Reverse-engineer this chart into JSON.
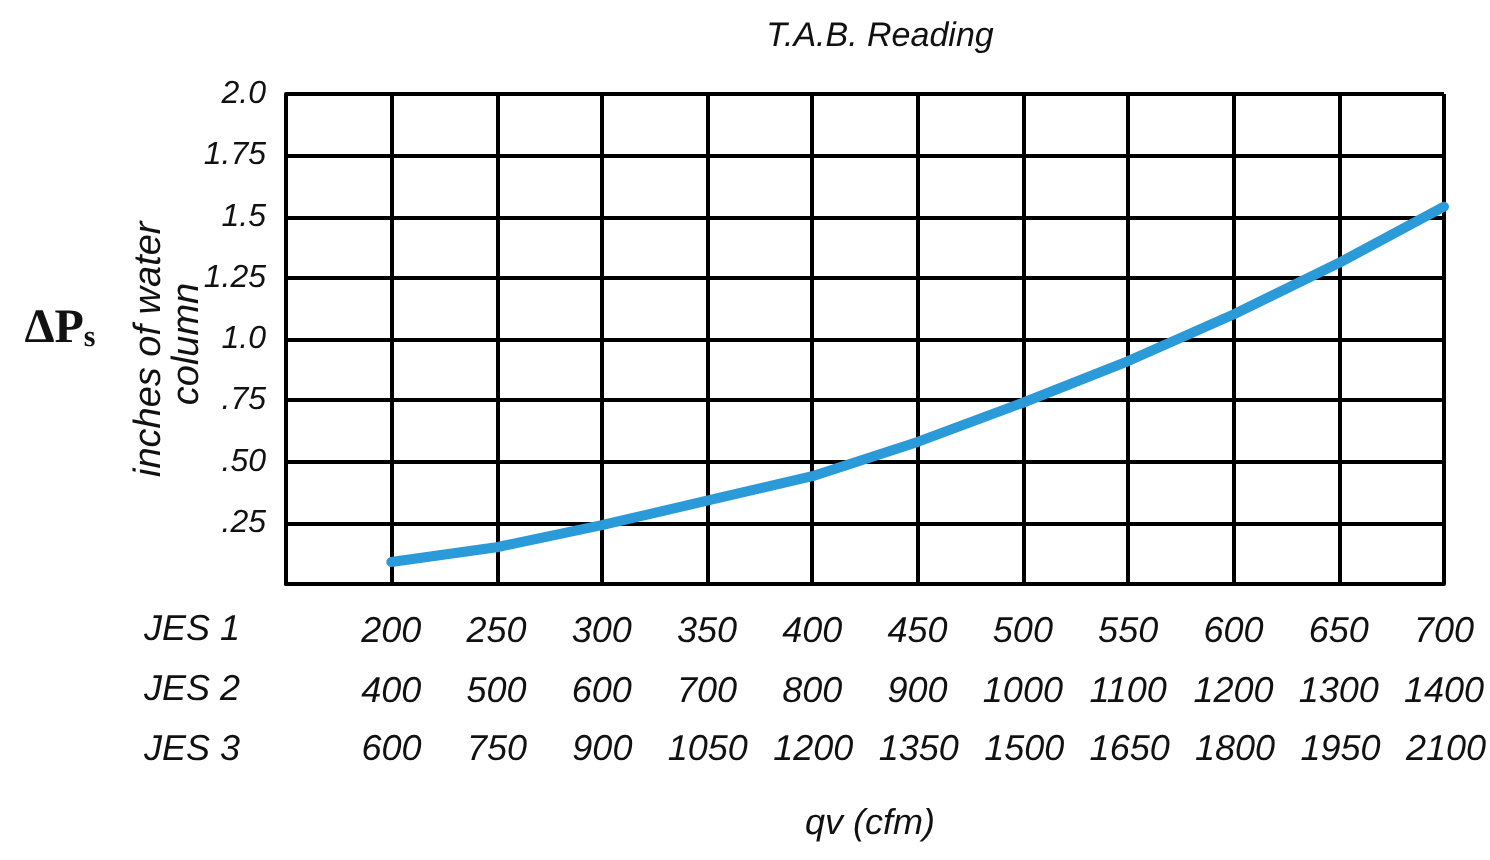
{
  "chart_data": {
    "type": "line",
    "title": "T.A.B. Reading",
    "xlabel": "qv (cfm)",
    "ylabel": "inches of water column",
    "annotations": [
      "ΔP$_{s}$",
      "JES 1",
      "JES 2",
      "JES 3",
      "600",
      "750",
      "900",
      "1050",
      "1200",
      "1350",
      "1500",
      "1650",
      "1800",
      "1950",
      "2100"
    ],
    "x": [
      200,
      250,
      300,
      350,
      400,
      450,
      500,
      550,
      600,
      650,
      700
    ],
    "series": [
      {
        "color": "#2b9ad8",
        "values": [
          0.09,
          0.15,
          0.24,
          0.34,
          0.44,
          0.58,
          0.74,
          0.91,
          1.1,
          1.31,
          1.54
        ]
      }
    ],
    "xlim": [
      150,
      700
    ],
    "xticks": [
      200,
      250,
      300,
      350,
      400,
      450,
      500,
      550,
      600,
      650,
      700
    ],
    "x2lim": [
      300,
      1400
    ],
    "x2ticks": [
      400,
      500,
      600,
      700,
      800,
      900,
      1000,
      1100,
      1200,
      1300,
      1400
    ],
    "ylim": [
      0,
      2
    ],
    "yticks": [
      {
        "value": 0.25,
        "label": ".25"
      },
      {
        "value": 0.5,
        "label": ".50"
      },
      {
        "value": 0.75,
        "label": ".75"
      },
      {
        "value": 1,
        "label": "1.0"
      },
      {
        "value": 1.25,
        "label": "1.25"
      },
      {
        "value": 1.5,
        "label": "1.5"
      },
      {
        "value": 1.75,
        "label": "1.75"
      },
      {
        "value": 2,
        "label": "2.0"
      }
    ],
    "grid": true,
    "marker": "none",
    "line_style": "solid"
  }
}
